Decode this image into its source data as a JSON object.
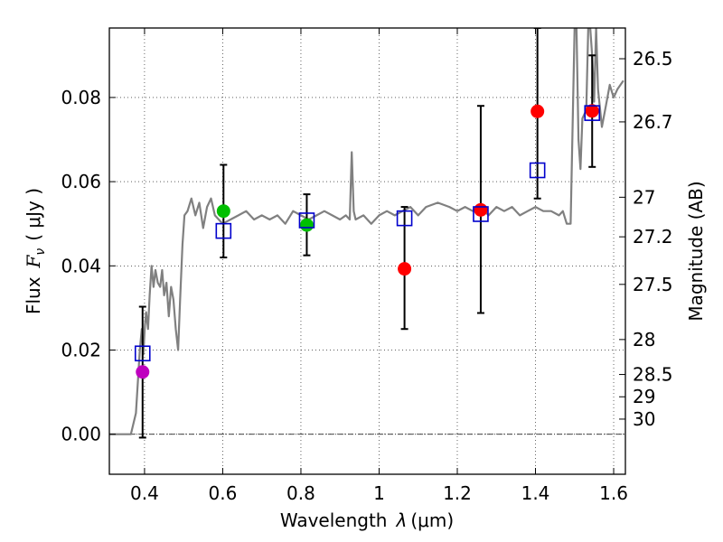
{
  "chart_data": {
    "type": "scatter",
    "xlabel": "Wavelength λ (μm)",
    "ylabel": "Flux F_ν (μJy)",
    "ylabel_parts": {
      "prefix": "Flux",
      "symbol": "F",
      "subscript": "ν",
      "unit": "( μJy )"
    },
    "xlabel_parts": {
      "prefix": "Wavelength",
      "symbol": "λ",
      "unit": "(μm)"
    },
    "y2label": "Magnitude (AB)",
    "xlim": [
      0.31,
      1.63
    ],
    "ylim": [
      -0.0095,
      0.0965
    ],
    "xticks": [
      0.4,
      0.6,
      0.8,
      1.0,
      1.2,
      1.4,
      1.6
    ],
    "xtick_labels": [
      "0.4",
      "0.6",
      "0.8",
      "1",
      "1.2",
      "1.4",
      "1.6"
    ],
    "yticks": [
      0.0,
      0.02,
      0.04,
      0.06,
      0.08
    ],
    "ytick_labels": [
      "0.00",
      "0.02",
      "0.04",
      "0.06",
      "0.08"
    ],
    "y2ticks": [
      {
        "label": "26.5",
        "flux": 0.0892
      },
      {
        "label": "26.7",
        "flux": 0.0742
      },
      {
        "label": "27",
        "flux": 0.0563
      },
      {
        "label": "27.2",
        "flux": 0.0469
      },
      {
        "label": "27.5",
        "flux": 0.0356
      },
      {
        "label": "28",
        "flux": 0.0225
      },
      {
        "label": "28.5",
        "flux": 0.0142
      },
      {
        "label": "29",
        "flux": 0.0089
      },
      {
        "label": "30",
        "flux": 0.0036
      }
    ],
    "grid": true,
    "model_spectrum": {
      "color": "#808080",
      "x": [
        0.31,
        0.365,
        0.378,
        0.384,
        0.388,
        0.393,
        0.397,
        0.401,
        0.404,
        0.409,
        0.413,
        0.418,
        0.423,
        0.428,
        0.434,
        0.44,
        0.445,
        0.45,
        0.456,
        0.462,
        0.468,
        0.474,
        0.48,
        0.486,
        0.491,
        0.497,
        0.502,
        0.51,
        0.52,
        0.53,
        0.54,
        0.55,
        0.56,
        0.57,
        0.58,
        0.6,
        0.62,
        0.64,
        0.66,
        0.68,
        0.7,
        0.72,
        0.74,
        0.76,
        0.78,
        0.8,
        0.82,
        0.84,
        0.86,
        0.88,
        0.9,
        0.915,
        0.925,
        0.93,
        0.935,
        0.94,
        0.96,
        0.98,
        1.0,
        1.02,
        1.04,
        1.06,
        1.08,
        1.1,
        1.12,
        1.15,
        1.18,
        1.2,
        1.22,
        1.24,
        1.26,
        1.28,
        1.3,
        1.32,
        1.34,
        1.36,
        1.38,
        1.4,
        1.42,
        1.44,
        1.46,
        1.47,
        1.48,
        1.49,
        1.5,
        1.505,
        1.51,
        1.515,
        1.52,
        1.53,
        1.535,
        1.54,
        1.545,
        1.55,
        1.555,
        1.56,
        1.57,
        1.58,
        1.59,
        1.6,
        1.61,
        1.625
      ],
      "y": [
        0.0,
        0.0,
        0.005,
        0.014,
        0.02,
        0.025,
        0.019,
        0.026,
        0.029,
        0.025,
        0.033,
        0.04,
        0.035,
        0.039,
        0.036,
        0.035,
        0.039,
        0.033,
        0.036,
        0.028,
        0.035,
        0.032,
        0.025,
        0.02,
        0.032,
        0.045,
        0.052,
        0.053,
        0.056,
        0.052,
        0.055,
        0.049,
        0.054,
        0.056,
        0.052,
        0.05,
        0.051,
        0.052,
        0.053,
        0.051,
        0.052,
        0.051,
        0.052,
        0.05,
        0.053,
        0.052,
        0.051,
        0.052,
        0.053,
        0.052,
        0.051,
        0.052,
        0.051,
        0.067,
        0.053,
        0.051,
        0.052,
        0.05,
        0.052,
        0.053,
        0.052,
        0.053,
        0.054,
        0.052,
        0.054,
        0.055,
        0.054,
        0.053,
        0.054,
        0.053,
        0.054,
        0.052,
        0.054,
        0.053,
        0.054,
        0.052,
        0.053,
        0.054,
        0.053,
        0.053,
        0.052,
        0.053,
        0.05,
        0.05,
        0.0965,
        0.0965,
        0.07,
        0.063,
        0.075,
        0.077,
        0.0965,
        0.0965,
        0.09,
        0.079,
        0.0965,
        0.082,
        0.073,
        0.078,
        0.083,
        0.08,
        0.082,
        0.084
      ]
    },
    "observed_points": [
      {
        "x": 0.395,
        "y": 0.0148,
        "color": "#bf00bf",
        "yerr_low": -0.0008,
        "yerr_high": 0.0303
      },
      {
        "x": 0.602,
        "y": 0.053,
        "color": "#00bf00",
        "yerr_low": 0.042,
        "yerr_high": 0.064
      },
      {
        "x": 0.815,
        "y": 0.0497,
        "color": "#00bf00",
        "yerr_low": 0.0425,
        "yerr_high": 0.057
      },
      {
        "x": 1.065,
        "y": 0.0393,
        "color": "#ff0000",
        "yerr_low": 0.025,
        "yerr_high": 0.054
      },
      {
        "x": 1.26,
        "y": 0.0533,
        "color": "#ff0000",
        "yerr_low": 0.0288,
        "yerr_high": 0.078
      },
      {
        "x": 1.405,
        "y": 0.0767,
        "color": "#ff0000",
        "yerr_low": 0.056,
        "yerr_high": 0.0965
      },
      {
        "x": 1.545,
        "y": 0.0768,
        "color": "#ff0000",
        "yerr_low": 0.0635,
        "yerr_high": 0.09
      }
    ],
    "model_points": [
      {
        "x": 0.395,
        "y": 0.0192
      },
      {
        "x": 0.602,
        "y": 0.0483
      },
      {
        "x": 0.815,
        "y": 0.0508
      },
      {
        "x": 1.065,
        "y": 0.0513
      },
      {
        "x": 1.26,
        "y": 0.0523
      },
      {
        "x": 1.405,
        "y": 0.0627
      },
      {
        "x": 1.545,
        "y": 0.0763
      }
    ],
    "model_point_color": "#0000cc",
    "errorbar_color": "#000000"
  }
}
